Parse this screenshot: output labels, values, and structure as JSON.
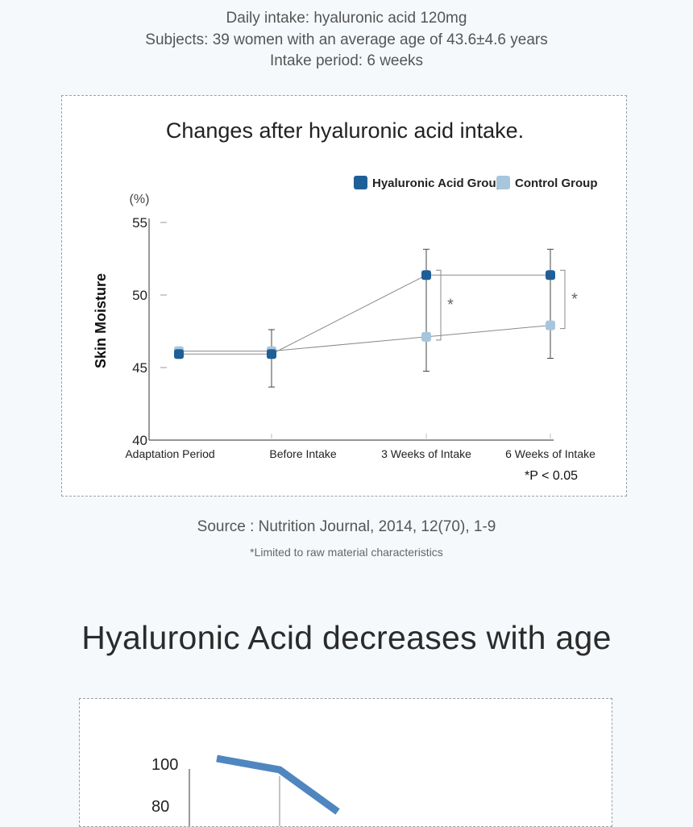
{
  "intro": {
    "line1": "Daily intake: hyaluronic acid 120mg",
    "line2": "Subjects: 39 women with an average age of 43.6±4.6 years",
    "line3": "Intake period: 6 weeks"
  },
  "source": "Source : Nutrition Journal, 2014, 12(70), 1-9",
  "note": "*Limited to raw material characteristics",
  "heading2": "Hyaluronic Acid decreases with age",
  "chart_data": [
    {
      "type": "line",
      "title": "Changes after hyaluronic acid intake.",
      "ylabel": "Skin Moisture",
      "yunit": "(%)",
      "ylim": [
        40,
        55
      ],
      "yticks": [
        40,
        45,
        50,
        55
      ],
      "categories": [
        "Adaptation Period",
        "Before Intake",
        "3 Weeks of Intake",
        "6 Weeks of Intake"
      ],
      "series": [
        {
          "name": "Hyaluronic Acid Group",
          "color": "#1f5f97",
          "values": [
            46.0,
            46.0,
            51.5,
            51.5
          ]
        },
        {
          "name": "Control Group",
          "color": "#a7c6dc",
          "values": [
            46.2,
            46.2,
            47.2,
            48.0
          ]
        }
      ],
      "error_bars": [
        {
          "category": "Before Intake",
          "low": 43.7,
          "high": 47.7
        },
        {
          "category": "3 Weeks of Intake",
          "low": 44.8,
          "high": 53.3
        },
        {
          "category": "6 Weeks of Intake",
          "low": 45.7,
          "high": 53.3
        }
      ],
      "significance": [
        {
          "category": "3 Weeks of Intake",
          "mark": "*"
        },
        {
          "category": "6 Weeks of Intake",
          "mark": "*"
        }
      ],
      "annotation": "*P < 0.05",
      "legend": "top-right",
      "grid": false
    },
    {
      "type": "line",
      "yticks_visible": [
        100,
        80
      ],
      "series": [
        {
          "color": "#4f86c0",
          "values": [
            100,
            97,
            85
          ]
        }
      ]
    }
  ]
}
